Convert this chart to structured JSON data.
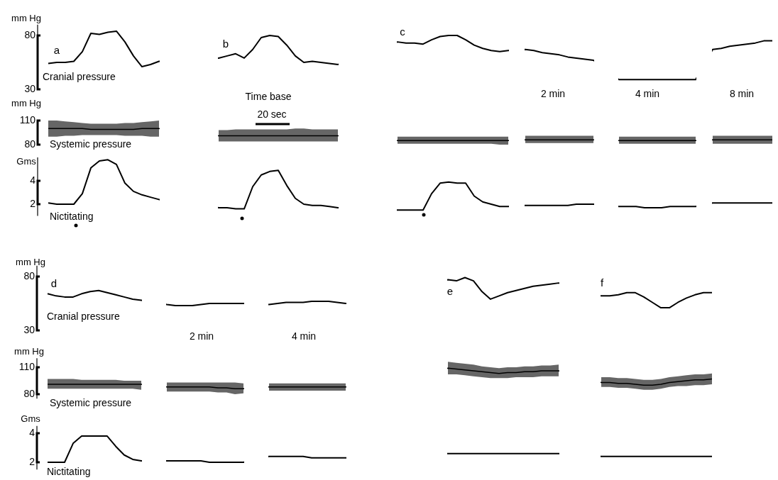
{
  "chart_data": [
    {
      "type": "line",
      "ylabel": "mm Hg",
      "ylim": [
        30,
        90
      ],
      "yticks": [
        30,
        80
      ],
      "tick_labels": "y",
      "color": "#000000",
      "annotations": [
        "a",
        "Cranial pressure",
        "b",
        "c",
        "2 min",
        "4 min",
        "8 min"
      ],
      "categories": [
        null,
        null,
        null,
        null,
        null,
        null,
        null,
        null,
        null,
        null,
        null,
        null,
        null,
        null,
        null,
        null,
        null,
        null,
        null,
        null,
        null,
        null,
        null,
        null,
        null,
        null,
        null,
        null,
        null,
        null,
        null,
        null,
        null,
        null,
        null,
        null,
        null,
        null,
        null,
        null,
        null,
        null,
        null,
        null,
        null,
        null,
        null,
        null,
        null,
        null,
        null,
        null,
        null,
        null,
        null,
        null,
        null,
        null,
        null,
        null,
        null,
        null,
        null,
        null,
        null,
        null,
        null,
        null,
        null,
        null,
        null,
        null,
        null,
        null,
        null,
        null,
        null,
        null,
        null,
        null,
        null,
        null,
        null,
        null,
        null,
        null
      ],
      "values": [
        54,
        55,
        55,
        56,
        65,
        82,
        81,
        83,
        84,
        74,
        61,
        51,
        53,
        56,
        null,
        null,
        null,
        null,
        null,
        null,
        59,
        61,
        63,
        59,
        67,
        78,
        80,
        79,
        71,
        61,
        55,
        56,
        55,
        54,
        53,
        null,
        null,
        null,
        null,
        null,
        null,
        74,
        73,
        73,
        72,
        76,
        79,
        80,
        80,
        76,
        71,
        68,
        66,
        65,
        66,
        null,
        67,
        66,
        64,
        63,
        62,
        60,
        59,
        58,
        57,
        null,
        null,
        39,
        39,
        39,
        39,
        39,
        39,
        39,
        39,
        39,
        39,
        null,
        67,
        68,
        70,
        71,
        72,
        73,
        75,
        75
      ]
    },
    {
      "type": "line",
      "ylabel": "mm Hg",
      "ylim": [
        80,
        110
      ],
      "yticks": [
        80,
        110
      ],
      "tick_labels": "y",
      "annotations": [
        "Systemic pressure",
        "Time base",
        "20 sec"
      ],
      "categories": [
        null,
        null,
        null,
        null,
        null,
        null,
        null,
        null,
        null,
        null,
        null,
        null,
        null,
        null,
        null,
        null,
        null,
        null,
        null,
        null,
        null,
        null,
        null,
        null,
        null,
        null,
        null,
        null,
        null,
        null,
        null,
        null,
        null,
        null,
        null,
        null,
        null,
        null,
        null,
        null,
        null,
        null,
        null,
        null,
        null,
        null,
        null,
        null,
        null,
        null,
        null,
        null,
        null,
        null,
        null,
        null,
        null,
        null,
        null,
        null,
        null,
        null,
        null,
        null,
        null,
        null,
        null,
        null,
        null,
        null,
        null,
        null,
        null,
        null,
        null,
        null,
        null,
        null,
        null,
        null,
        null,
        null,
        null,
        null,
        null,
        null
      ],
      "series": [
        {
          "color": "#000000",
          "values": [
            100,
            100,
            100,
            100,
            100,
            99,
            99,
            99,
            99,
            99,
            99,
            100,
            100,
            100,
            null,
            null,
            null,
            null,
            null,
            null,
            91,
            91,
            91,
            91,
            91,
            91,
            91,
            91,
            91,
            91,
            91,
            91,
            91,
            91,
            91,
            null,
            null,
            null,
            null,
            null,
            null,
            85,
            85,
            85,
            85,
            85,
            85,
            85,
            85,
            85,
            85,
            85,
            85,
            85,
            85,
            null,
            86,
            86,
            86,
            86,
            86,
            86,
            86,
            86,
            86,
            null,
            null,
            85,
            85,
            85,
            85,
            85,
            85,
            85,
            85,
            85,
            85,
            null,
            86,
            86,
            86,
            86,
            86,
            86,
            86,
            86
          ],
          "lower": [
            90,
            90,
            91,
            91,
            92,
            92,
            92,
            92,
            92,
            91,
            91,
            91,
            90,
            90,
            null,
            null,
            null,
            null,
            null,
            null,
            84,
            84,
            84,
            84,
            84,
            84,
            84,
            84,
            84,
            84,
            84,
            84,
            84,
            84,
            84,
            null,
            null,
            null,
            null,
            null,
            null,
            81,
            81,
            81,
            81,
            81,
            81,
            81,
            81,
            81,
            81,
            81,
            81,
            80,
            80,
            null,
            82,
            82,
            82,
            82,
            82,
            82,
            82,
            82,
            82,
            null,
            null,
            81,
            81,
            81,
            81,
            81,
            81,
            81,
            81,
            81,
            81,
            null,
            81,
            81,
            81,
            81,
            81,
            81,
            81,
            81
          ],
          "upper": [
            110,
            110,
            109,
            108,
            107,
            106,
            106,
            106,
            106,
            107,
            107,
            108,
            109,
            110,
            null,
            null,
            null,
            null,
            null,
            null,
            98,
            98,
            99,
            99,
            99,
            99,
            99,
            99,
            99,
            100,
            100,
            99,
            99,
            99,
            99,
            null,
            null,
            null,
            null,
            null,
            null,
            90,
            90,
            90,
            90,
            90,
            90,
            90,
            90,
            90,
            90,
            90,
            90,
            90,
            90,
            null,
            91,
            91,
            91,
            91,
            91,
            91,
            91,
            91,
            91,
            null,
            null,
            90,
            90,
            90,
            90,
            90,
            90,
            90,
            90,
            90,
            90,
            null,
            91,
            91,
            91,
            91,
            91,
            91,
            91,
            91
          ]
        }
      ]
    },
    {
      "type": "line",
      "ylabel": "Gms",
      "ylim": [
        1,
        6
      ],
      "yticks": [
        2,
        4
      ],
      "tick_labels": "y",
      "color": "#000000",
      "annotations": [
        "Nictitating"
      ],
      "categories": [
        null,
        null,
        null,
        null,
        null,
        null,
        null,
        null,
        null,
        null,
        null,
        null,
        null,
        null,
        null,
        null,
        null,
        null,
        null,
        null,
        null,
        null,
        null,
        null,
        null,
        null,
        null,
        null,
        null,
        null,
        null,
        null,
        null,
        null,
        null,
        null,
        null,
        null,
        null,
        null,
        null,
        null,
        null,
        null,
        null,
        null,
        null,
        null,
        null,
        null,
        null,
        null,
        null,
        null,
        null,
        null,
        null,
        null,
        null,
        null,
        null,
        null,
        null,
        null,
        null,
        null,
        null,
        null,
        null,
        null,
        null,
        null,
        null,
        null,
        null,
        null,
        null,
        null,
        null,
        null,
        null,
        null,
        null,
        null,
        null,
        null
      ],
      "values": [
        2.1,
        2.0,
        2.0,
        2.0,
        2.9,
        5.1,
        5.7,
        5.8,
        5.4,
        3.8,
        3.1,
        2.8,
        2.6,
        2.4,
        null,
        null,
        null,
        null,
        null,
        null,
        1.7,
        1.7,
        1.6,
        1.6,
        3.5,
        4.5,
        4.8,
        4.9,
        3.6,
        2.5,
        2.0,
        1.9,
        1.9,
        1.8,
        1.7,
        null,
        null,
        null,
        null,
        null,
        null,
        1.5,
        1.5,
        1.5,
        1.5,
        2.9,
        3.8,
        3.9,
        3.8,
        3.8,
        2.7,
        2.2,
        2.0,
        1.8,
        1.8,
        null,
        1.9,
        1.9,
        1.9,
        1.9,
        1.9,
        1.9,
        2.0,
        2.0,
        2.0,
        null,
        null,
        1.8,
        1.8,
        1.8,
        1.7,
        1.7,
        1.7,
        1.8,
        1.8,
        1.8,
        1.8,
        null,
        2.1,
        2.1,
        2.1,
        2.1,
        2.1,
        2.1,
        2.1,
        2.1
      ]
    },
    {
      "type": "line",
      "ylabel": "mm Hg",
      "ylim": [
        30,
        90
      ],
      "yticks": [
        30,
        80
      ],
      "tick_labels": "y",
      "color": "#000000",
      "annotations": [
        "d",
        "Cranial pressure",
        "2 min",
        "4 min",
        "e",
        "f"
      ],
      "categories": [
        null,
        null,
        null,
        null,
        null,
        null,
        null,
        null,
        null,
        null,
        null,
        null,
        null,
        null,
        null,
        null,
        null,
        null,
        null,
        null,
        null,
        null,
        null,
        null,
        null,
        null,
        null,
        null,
        null,
        null,
        null,
        null,
        null,
        null,
        null,
        null,
        null,
        null,
        null,
        null,
        null,
        null,
        null,
        null,
        null,
        null,
        null,
        null,
        null,
        null,
        null,
        null,
        null,
        null,
        null,
        null,
        null,
        null,
        null,
        null,
        null,
        null,
        null,
        null,
        null,
        null,
        null,
        null,
        null,
        null,
        null,
        null,
        null,
        null,
        null,
        null,
        null,
        null,
        null
      ],
      "values": [
        64,
        62,
        61,
        61,
        64,
        66,
        67,
        65,
        63,
        61,
        59,
        58,
        null,
        null,
        54,
        53,
        53,
        53,
        54,
        55,
        55,
        55,
        55,
        55,
        null,
        null,
        54,
        55,
        56,
        56,
        56,
        57,
        57,
        57,
        56,
        55,
        null,
        null,
        null,
        null,
        null,
        null,
        null,
        null,
        null,
        null,
        null,
        77,
        76,
        79,
        76,
        66,
        59,
        62,
        65,
        67,
        69,
        71,
        72,
        73,
        74,
        null,
        null,
        null,
        null,
        62,
        62,
        63,
        65,
        65,
        61,
        56,
        51,
        51,
        56,
        60,
        63,
        65,
        65
      ]
    },
    {
      "type": "line",
      "ylabel": "mm Hg",
      "ylim": [
        75,
        120
      ],
      "yticks": [
        80,
        110
      ],
      "tick_labels": "y",
      "annotations": [
        "Systemic pressure"
      ],
      "categories": [
        null,
        null,
        null,
        null,
        null,
        null,
        null,
        null,
        null,
        null,
        null,
        null,
        null,
        null,
        null,
        null,
        null,
        null,
        null,
        null,
        null,
        null,
        null,
        null,
        null,
        null,
        null,
        null,
        null,
        null,
        null,
        null,
        null,
        null,
        null,
        null,
        null,
        null,
        null,
        null,
        null,
        null,
        null,
        null,
        null,
        null,
        null,
        null,
        null,
        null,
        null,
        null,
        null,
        null,
        null,
        null,
        null,
        null,
        null,
        null,
        null,
        null,
        null,
        null,
        null,
        null,
        null,
        null,
        null,
        null,
        null,
        null,
        null,
        null,
        null,
        null,
        null,
        null,
        null
      ],
      "series": [
        {
          "color": "#000000",
          "values": [
            91,
            91,
            91,
            91,
            91,
            91,
            91,
            91,
            91,
            91,
            91,
            91,
            null,
            null,
            88,
            88,
            88,
            88,
            88,
            88,
            87,
            87,
            86,
            86,
            null,
            null,
            88,
            88,
            88,
            88,
            88,
            88,
            88,
            88,
            88,
            88,
            null,
            null,
            null,
            null,
            null,
            null,
            null,
            null,
            null,
            null,
            null,
            109,
            108,
            107,
            106,
            105,
            104,
            103,
            104,
            104,
            105,
            105,
            106,
            106,
            106,
            null,
            null,
            null,
            null,
            93,
            93,
            92,
            92,
            91,
            90,
            90,
            91,
            93,
            94,
            95,
            96,
            96,
            97
          ],
          "lower": [
            86,
            86,
            86,
            86,
            86,
            86,
            86,
            86,
            86,
            86,
            86,
            85,
            null,
            null,
            83,
            83,
            83,
            83,
            83,
            83,
            82,
            82,
            80,
            81,
            null,
            null,
            84,
            84,
            84,
            84,
            84,
            84,
            84,
            84,
            84,
            84,
            null,
            null,
            null,
            null,
            null,
            null,
            null,
            null,
            null,
            null,
            null,
            102,
            102,
            101,
            100,
            99,
            98,
            98,
            98,
            99,
            99,
            99,
            100,
            100,
            100,
            null,
            null,
            null,
            null,
            88,
            88,
            87,
            87,
            86,
            85,
            85,
            86,
            88,
            89,
            89,
            90,
            90,
            91
          ],
          "upper": [
            97,
            97,
            97,
            97,
            96,
            96,
            96,
            96,
            96,
            95,
            95,
            95,
            null,
            null,
            93,
            93,
            93,
            93,
            93,
            93,
            93,
            93,
            93,
            92,
            null,
            null,
            92,
            92,
            92,
            92,
            92,
            92,
            92,
            92,
            92,
            92,
            null,
            null,
            null,
            null,
            null,
            null,
            null,
            null,
            null,
            null,
            null,
            116,
            115,
            114,
            113,
            111,
            110,
            109,
            110,
            110,
            111,
            111,
            112,
            112,
            113,
            null,
            null,
            null,
            null,
            99,
            99,
            98,
            98,
            97,
            96,
            96,
            97,
            99,
            100,
            101,
            102,
            102,
            103
          ]
        }
      ]
    },
    {
      "type": "line",
      "ylabel": "Gms",
      "ylim": [
        1.5,
        4.5
      ],
      "yticks": [
        2,
        4
      ],
      "tick_labels": "y",
      "color": "#000000",
      "annotations": [
        "Nictitating"
      ],
      "categories": [
        null,
        null,
        null,
        null,
        null,
        null,
        null,
        null,
        null,
        null,
        null,
        null,
        null,
        null,
        null,
        null,
        null,
        null,
        null,
        null,
        null,
        null,
        null,
        null,
        null,
        null,
        null,
        null,
        null,
        null,
        null,
        null,
        null,
        null,
        null,
        null,
        null,
        null,
        null,
        null,
        null,
        null,
        null,
        null,
        null,
        null,
        null,
        null,
        null,
        null,
        null,
        null,
        null,
        null,
        null,
        null,
        null,
        null,
        null,
        null,
        null,
        null,
        null,
        null,
        null,
        null,
        null,
        null,
        null,
        null,
        null,
        null,
        null,
        null,
        null,
        null,
        null,
        null,
        null
      ],
      "values": [
        2.0,
        2.0,
        2.0,
        3.3,
        3.8,
        3.8,
        3.8,
        3.8,
        3.1,
        2.5,
        2.2,
        2.1,
        null,
        null,
        2.1,
        2.1,
        2.1,
        2.1,
        2.1,
        2.0,
        2.0,
        2.0,
        2.0,
        2.0,
        null,
        null,
        2.4,
        2.4,
        2.4,
        2.4,
        2.4,
        2.3,
        2.3,
        2.3,
        2.3,
        2.3,
        null,
        null,
        null,
        null,
        null,
        null,
        null,
        null,
        null,
        null,
        null,
        2.6,
        2.6,
        2.6,
        2.6,
        2.6,
        2.6,
        2.6,
        2.6,
        2.6,
        2.6,
        2.6,
        2.6,
        2.6,
        2.6,
        null,
        null,
        null,
        null,
        2.4,
        2.4,
        2.4,
        2.4,
        2.4,
        2.4,
        2.4,
        2.4,
        2.4,
        2.4,
        2.4,
        2.4,
        2.4,
        2.4
      ]
    }
  ]
}
